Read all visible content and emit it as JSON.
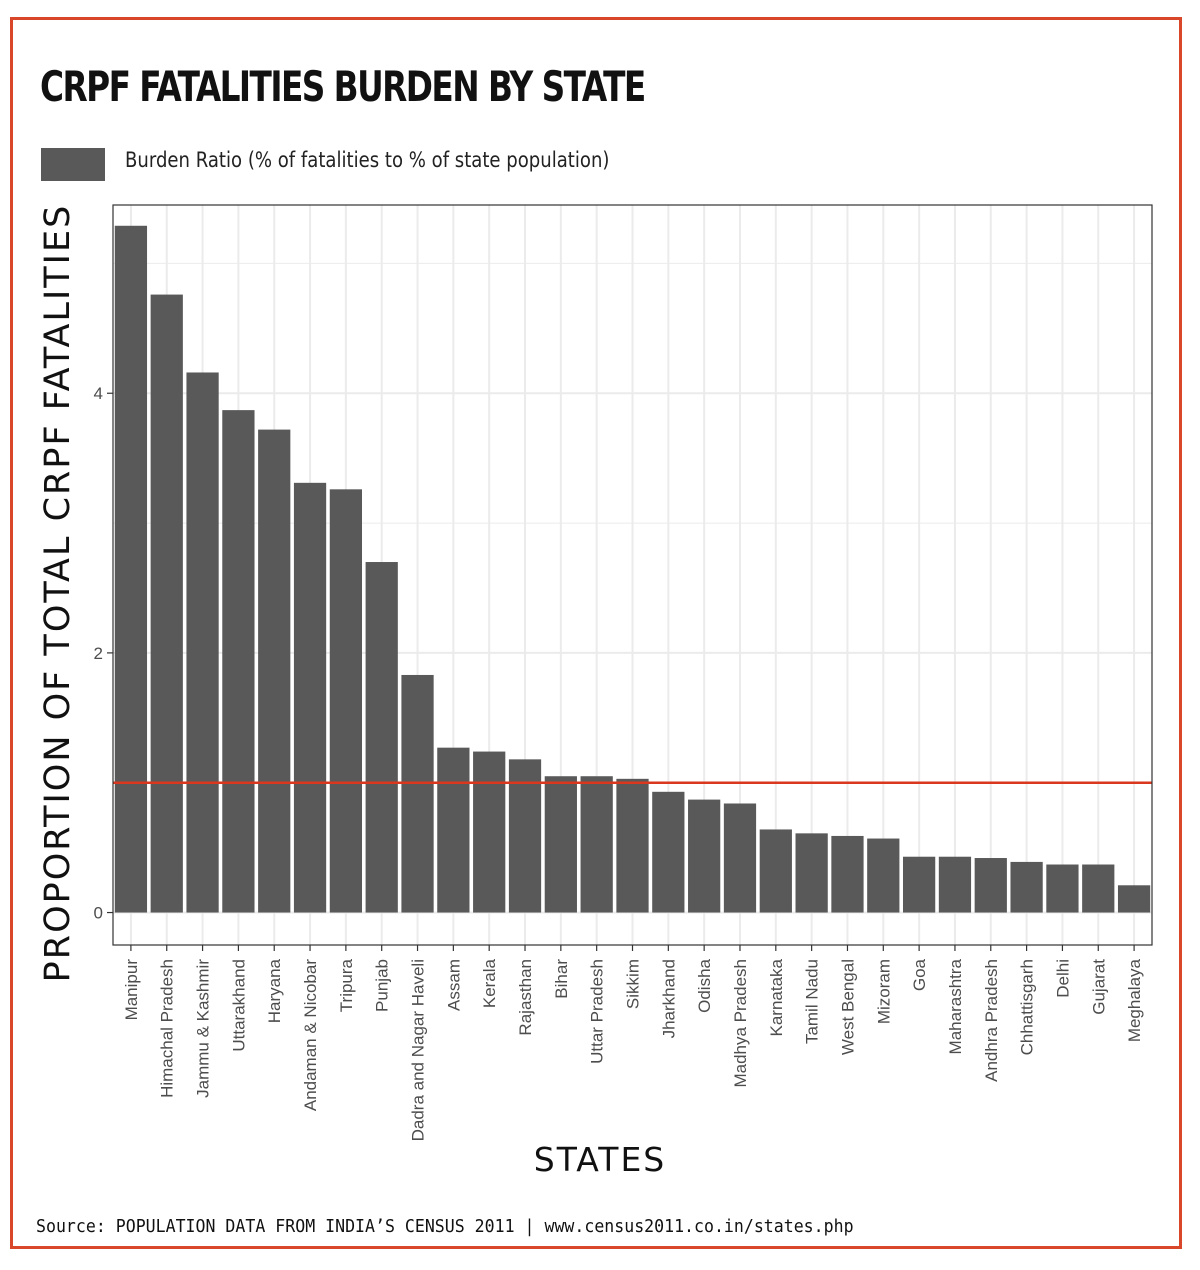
{
  "title": "CRPF FATALITIES BURDEN BY STATE",
  "legend": {
    "label": "Burden Ratio (% of fatalities to % of state population)",
    "color": "#595959"
  },
  "source": "Source: POPULATION DATA FROM INDIA’S CENSUS 2011 | www.census2011.co.in/states.php",
  "colors": {
    "frame": "#d9472b",
    "bar": "#595959",
    "reference_line": "#d9381e",
    "grid": "#ebebeb"
  },
  "chart_data": {
    "type": "bar",
    "xlabel": "STATES",
    "ylabel": "PROPORTION OF TOTAL CRPF FATALITIES",
    "ylim": [
      -0.25,
      5.45
    ],
    "yticks": [
      0,
      2,
      4
    ],
    "grid": true,
    "legend_position": "top-left",
    "reference_line": 1.0,
    "categories": [
      "Manipur",
      "Himachal Pradesh",
      "Jammu & Kashmir",
      "Uttarakhand",
      "Haryana",
      "Andaman & Nicobar",
      "Tripura",
      "Punjab",
      "Dadra and Nagar Haveli",
      "Assam",
      "Kerala",
      "Rajasthan",
      "Bihar",
      "Uttar Pradesh",
      "Sikkim",
      "Jharkhand",
      "Odisha",
      "Madhya Pradesh",
      "Karnataka",
      "Tamil Nadu",
      "West Bengal",
      "Mizoram",
      "Goa",
      "Maharashtra",
      "Andhra Pradesh",
      "Chhattisgarh",
      "Delhi",
      "Gujarat",
      "Meghalaya"
    ],
    "series": [
      {
        "name": "Burden Ratio (% of fatalities to % of state population)",
        "values": [
          5.29,
          4.76,
          4.16,
          3.87,
          3.72,
          3.31,
          3.26,
          2.7,
          1.83,
          1.27,
          1.24,
          1.18,
          1.05,
          1.05,
          1.03,
          0.93,
          0.87,
          0.84,
          0.64,
          0.61,
          0.59,
          0.57,
          0.43,
          0.43,
          0.42,
          0.39,
          0.37,
          0.37,
          0.21
        ]
      }
    ]
  }
}
